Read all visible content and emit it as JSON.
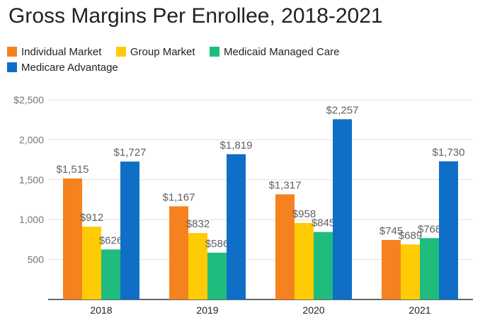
{
  "chart_data": {
    "type": "bar",
    "title": "Gross Margins Per Enrollee, 2018-2021",
    "xlabel": "",
    "ylabel": "",
    "categories": [
      "2018",
      "2019",
      "2020",
      "2021"
    ],
    "ylim": [
      0,
      2500
    ],
    "yticks": [
      500,
      1000,
      1500,
      2000,
      2500
    ],
    "ytick_labels": [
      "500",
      "1,000",
      "1,500",
      "2,000",
      "$2,500"
    ],
    "grid": true,
    "legend_position": "top-left",
    "series": [
      {
        "name": "Individual Market",
        "color": "#F5821F",
        "values": [
          1515,
          1167,
          1317,
          745
        ],
        "labels": [
          "$1,515",
          "$1,167",
          "$1,317",
          "$745"
        ]
      },
      {
        "name": "Group Market",
        "color": "#FFCB05",
        "values": [
          912,
          832,
          958,
          689
        ],
        "labels": [
          "$912",
          "$832",
          "$958",
          "$689"
        ]
      },
      {
        "name": "Medicaid Managed Care",
        "color": "#1FBC7E",
        "values": [
          626,
          586,
          845,
          768
        ],
        "labels": [
          "$626",
          "$586",
          "$845",
          "$768"
        ]
      },
      {
        "name": "Medicare Advantage",
        "color": "#0F6FC6",
        "values": [
          1727,
          1819,
          2257,
          1730
        ],
        "labels": [
          "$1,727",
          "$1,819",
          "$2,257",
          "$1,730"
        ]
      }
    ]
  }
}
